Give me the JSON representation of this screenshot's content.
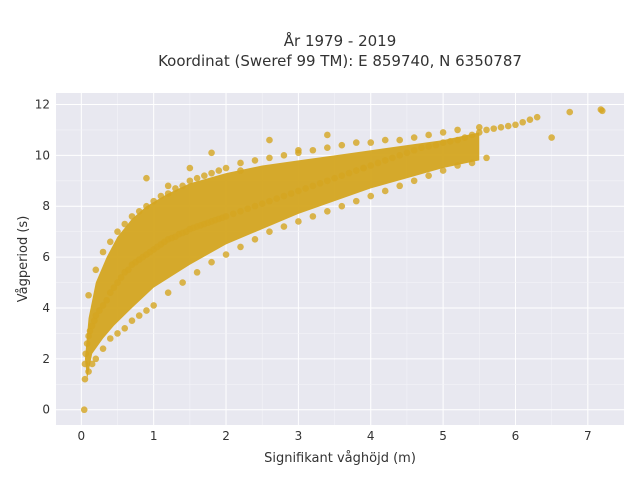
{
  "chart_data": {
    "type": "scatter",
    "title_line1": "År 1979 - 2019",
    "title_line2": "Koordinat (Sweref 99 TM): E 859740, N 6350787",
    "xlabel": "Signifikant våghöjd (m)",
    "ylabel": "Vågperiod (s)",
    "xlim": [
      -0.35,
      7.5
    ],
    "ylim": [
      -0.6,
      12.45
    ],
    "xticks": [
      0,
      1,
      2,
      3,
      4,
      5,
      6,
      7
    ],
    "yticks": [
      0,
      2,
      4,
      6,
      8,
      10,
      12
    ],
    "xtick_labels": [
      "0",
      "1",
      "2",
      "3",
      "4",
      "5",
      "6",
      "7"
    ],
    "ytick_labels": [
      "0",
      "2",
      "4",
      "6",
      "8",
      "10",
      "12"
    ],
    "grid": true,
    "legend": "none",
    "marker_color": "#d4a520",
    "plot_bg": "#e8e8f0",
    "series": [
      {
        "values_description_note": "",
        "x": [
          0.05,
          0.06,
          0.08,
          0.1,
          0.12,
          0.15,
          0.18,
          0.2,
          0.25,
          0.3,
          0.35,
          0.4,
          0.45,
          0.5,
          0.55,
          0.6,
          0.65,
          0.7,
          0.75,
          0.8,
          0.85,
          0.9,
          0.95,
          1.0,
          1.05,
          1.1,
          1.15,
          1.2,
          1.25,
          1.3,
          1.35,
          1.4,
          1.45,
          1.5,
          1.55,
          1.6,
          1.65,
          1.7,
          1.75,
          1.8,
          1.85,
          1.9,
          1.95,
          2.0,
          2.1,
          2.2,
          2.3,
          2.4,
          2.5,
          2.6,
          2.7,
          2.8,
          2.9,
          3.0,
          3.1,
          3.2,
          3.3,
          3.4,
          3.5,
          3.6,
          3.7,
          3.8,
          3.9,
          4.0,
          4.1,
          4.2,
          4.3,
          4.4,
          4.5,
          4.6,
          4.7,
          4.8,
          4.9,
          5.0,
          5.1,
          5.2,
          5.3,
          5.4,
          5.5,
          5.6,
          5.7,
          5.8,
          5.9,
          6.0,
          6.1,
          6.2,
          6.3,
          6.5,
          6.75,
          7.18,
          7.2,
          0.05,
          0.1,
          0.15,
          0.2,
          0.3,
          0.4,
          0.5,
          0.6,
          0.7,
          0.8,
          0.9,
          1.0,
          1.2,
          1.4,
          1.6,
          1.8,
          2.0,
          2.2,
          2.4,
          2.6,
          2.8,
          3.0,
          3.2,
          3.4,
          3.6,
          3.8,
          4.0,
          4.2,
          4.4,
          4.6,
          4.8,
          5.0,
          5.2,
          5.4,
          5.6,
          0.1,
          0.2,
          0.3,
          0.4,
          0.5,
          0.6,
          0.7,
          0.8,
          0.9,
          1.0,
          1.1,
          1.2,
          1.3,
          1.4,
          1.5,
          1.6,
          1.7,
          1.8,
          1.9,
          2.0,
          2.2,
          2.4,
          2.6,
          2.8,
          3.0,
          3.2,
          3.4,
          3.6,
          3.8,
          4.0,
          4.2,
          4.4,
          4.6,
          4.8,
          5.0,
          5.2,
          5.5,
          0.9,
          1.2,
          1.5,
          1.8,
          2.2,
          2.6,
          3.0,
          3.4,
          3.9,
          0.04
        ],
        "y": [
          1.8,
          2.2,
          2.6,
          2.9,
          3.1,
          3.3,
          3.5,
          3.7,
          3.9,
          4.1,
          4.3,
          4.6,
          4.8,
          5.0,
          5.2,
          5.4,
          5.5,
          5.7,
          5.8,
          5.9,
          6.0,
          6.1,
          6.2,
          6.3,
          6.4,
          6.5,
          6.6,
          6.7,
          6.75,
          6.8,
          6.9,
          6.95,
          7.0,
          7.1,
          7.15,
          7.2,
          7.25,
          7.3,
          7.35,
          7.4,
          7.45,
          7.5,
          7.55,
          7.6,
          7.7,
          7.8,
          7.9,
          8.0,
          8.1,
          8.2,
          8.3,
          8.4,
          8.5,
          8.6,
          8.7,
          8.8,
          8.9,
          9.0,
          9.1,
          9.2,
          9.3,
          9.4,
          9.5,
          9.6,
          9.7,
          9.8,
          9.9,
          10.0,
          10.1,
          10.2,
          10.3,
          10.35,
          10.4,
          10.5,
          10.55,
          10.6,
          10.7,
          10.8,
          10.9,
          11.0,
          11.05,
          11.1,
          11.15,
          11.2,
          11.3,
          11.4,
          11.5,
          10.7,
          11.7,
          11.8,
          11.75,
          1.2,
          1.5,
          1.8,
          2.0,
          2.4,
          2.8,
          3.0,
          3.2,
          3.5,
          3.7,
          3.9,
          4.1,
          4.6,
          5.0,
          5.4,
          5.8,
          6.1,
          6.4,
          6.7,
          7.0,
          7.2,
          7.4,
          7.6,
          7.8,
          8.0,
          8.2,
          8.4,
          8.6,
          8.8,
          9.0,
          9.2,
          9.4,
          9.6,
          9.7,
          9.9,
          4.5,
          5.5,
          6.2,
          6.6,
          7.0,
          7.3,
          7.6,
          7.8,
          8.0,
          8.2,
          8.4,
          8.5,
          8.7,
          8.8,
          9.0,
          9.1,
          9.2,
          9.3,
          9.4,
          9.5,
          9.7,
          9.8,
          9.9,
          10.0,
          10.1,
          10.2,
          10.3,
          10.4,
          10.5,
          10.5,
          10.6,
          10.6,
          10.7,
          10.8,
          10.9,
          11.0,
          11.1,
          9.1,
          8.8,
          9.5,
          10.1,
          9.4,
          10.6,
          10.2,
          10.8,
          9.5,
          0.0
        ]
      }
    ]
  }
}
